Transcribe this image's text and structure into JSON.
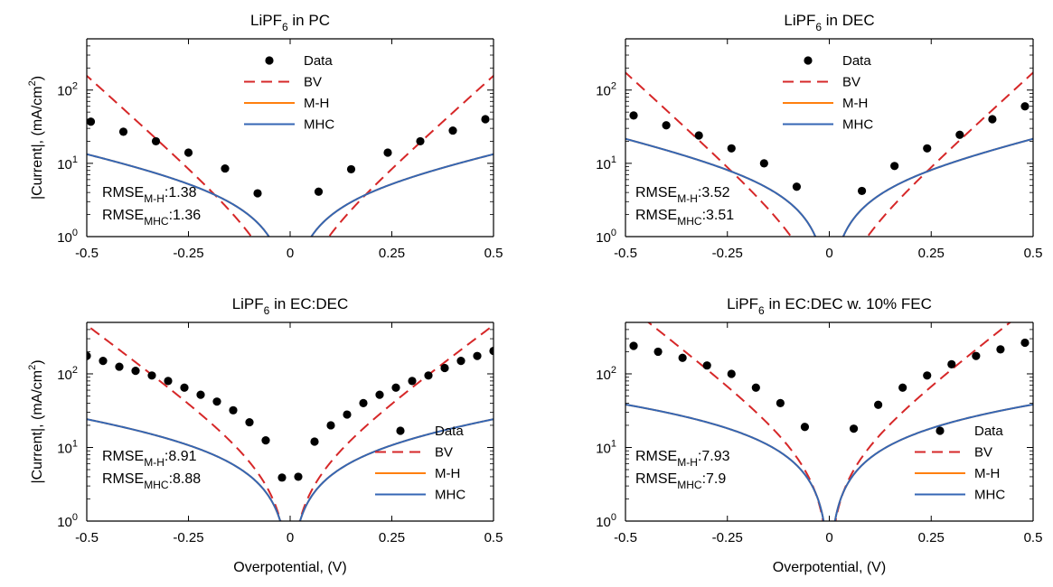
{
  "figure": {
    "xlabel": "Overpotential, (V)",
    "ylabel": "|Current|, (mA/cm",
    "ylabel_sup": "2",
    "ylabel_tail": ")",
    "xticks": [
      "-0.5",
      "-0.25",
      "0",
      "0.25",
      "0.5"
    ],
    "yticks": [
      {
        "base": "10",
        "exp": "0"
      },
      {
        "base": "10",
        "exp": "1"
      },
      {
        "base": "10",
        "exp": "2"
      }
    ],
    "colors": {
      "data": "#000000",
      "bv": "#d62728",
      "mh": "#ff7f0e",
      "mhc": "#3466b4"
    }
  },
  "chart_data": [
    {
      "type": "scatter",
      "title": "LiPF6 in PC",
      "title_main": "LiPF",
      "title_sub": "6",
      "title_rest": " in PC",
      "xlim": [
        -0.5,
        0.5
      ],
      "ylim": [
        1,
        500
      ],
      "yscale": "log",
      "legend": {
        "position": "top-center",
        "entries": [
          "Data",
          "BV",
          "M-H",
          "MHC"
        ]
      },
      "rmse": [
        {
          "label": "RMSE",
          "sub": "M-H",
          "value": ":1.38"
        },
        {
          "label": "RMSE",
          "sub": "MHC",
          "value": ":1.36"
        }
      ],
      "series": [
        {
          "name": "Data",
          "style": "markers",
          "x": [
            -0.49,
            -0.41,
            -0.33,
            -0.25,
            -0.16,
            -0.08,
            0.07,
            0.15,
            0.24,
            0.32,
            0.4,
            0.48
          ],
          "y": [
            37,
            27,
            20,
            14,
            8.5,
            3.9,
            4.1,
            8.3,
            14,
            20,
            28,
            40
          ]
        },
        {
          "name": "BV",
          "style": "dashed",
          "i0": 0.5,
          "alpha_n": 11.5
        },
        {
          "name": "M-H",
          "style": "solid",
          "A": 6.54,
          "B": 2.92
        },
        {
          "name": "MHC",
          "style": "solid",
          "A": 6.54,
          "B": 2.92
        }
      ]
    },
    {
      "type": "scatter",
      "title": "LiPF6 in DEC",
      "title_main": "LiPF",
      "title_sub": "6",
      "title_rest": " in DEC",
      "xlim": [
        -0.5,
        0.5
      ],
      "ylim": [
        1,
        500
      ],
      "yscale": "log",
      "legend": {
        "position": "top-center",
        "entries": [
          "Data",
          "BV",
          "M-H",
          "MHC"
        ]
      },
      "rmse": [
        {
          "label": "RMSE",
          "sub": "M-H",
          "value": ":3.52"
        },
        {
          "label": "RMSE",
          "sub": "MHC",
          "value": ":3.51"
        }
      ],
      "series": [
        {
          "name": "Data",
          "style": "markers",
          "x": [
            -0.48,
            -0.4,
            -0.32,
            -0.24,
            -0.16,
            -0.08,
            0.08,
            0.16,
            0.24,
            0.32,
            0.4,
            0.48
          ],
          "y": [
            45,
            33,
            24,
            16,
            10,
            4.8,
            4.2,
            9.2,
            16,
            24.5,
            40,
            60
          ]
        },
        {
          "name": "BV",
          "style": "dashed",
          "i0": 0.5,
          "alpha_n": 11.7
        },
        {
          "name": "M-H",
          "style": "solid",
          "A": 9.19,
          "B": 3.18
        },
        {
          "name": "MHC",
          "style": "solid",
          "A": 9.19,
          "B": 3.18
        }
      ]
    },
    {
      "type": "scatter",
      "title": "LiPF6 in EC:DEC",
      "title_main": "LiPF",
      "title_sub": "6",
      "title_rest": " in EC:DEC",
      "xlim": [
        -0.5,
        0.5
      ],
      "ylim": [
        1,
        500
      ],
      "yscale": "log",
      "legend": {
        "position": "bottom-right",
        "entries": [
          "Data",
          "BV",
          "M-H",
          "MHC"
        ]
      },
      "rmse": [
        {
          "label": "RMSE",
          "sub": "M-H",
          "value": ":8.91"
        },
        {
          "label": "RMSE",
          "sub": "MHC",
          "value": ":8.88"
        }
      ],
      "series": [
        {
          "name": "Data",
          "style": "markers",
          "x": [
            -0.5,
            -0.46,
            -0.42,
            -0.38,
            -0.34,
            -0.3,
            -0.26,
            -0.22,
            -0.18,
            -0.14,
            -0.1,
            -0.06,
            -0.02,
            0.02,
            0.06,
            0.1,
            0.14,
            0.18,
            0.22,
            0.26,
            0.3,
            0.34,
            0.38,
            0.42,
            0.46,
            0.5
          ],
          "y": [
            175,
            150,
            125,
            110,
            95,
            80,
            65,
            52,
            42,
            32,
            22,
            12.5,
            3.9,
            4,
            12,
            20,
            28,
            40,
            52,
            65,
            80,
            95,
            120,
            150,
            175,
            205
          ]
        },
        {
          "name": "BV",
          "style": "dashed",
          "i0": 4.0,
          "alpha_n": 9.5
        },
        {
          "name": "M-H",
          "style": "solid",
          "A": 20.6,
          "B": 2.0
        },
        {
          "name": "MHC",
          "style": "solid",
          "A": 20.6,
          "B": 2.0
        }
      ]
    },
    {
      "type": "scatter",
      "title": "LiPF6 in EC:DEC w. 10% FEC",
      "title_main": "LiPF",
      "title_sub": "6",
      "title_rest": " in EC:DEC w. 10% FEC",
      "xlim": [
        -0.5,
        0.5
      ],
      "ylim": [
        1,
        500
      ],
      "yscale": "log",
      "legend": {
        "position": "bottom-right",
        "entries": [
          "Data",
          "BV",
          "M-H",
          "MHC"
        ]
      },
      "rmse": [
        {
          "label": "RMSE",
          "sub": "M-H",
          "value": ":7.93"
        },
        {
          "label": "RMSE",
          "sub": "MHC",
          "value": ":7.9"
        }
      ],
      "series": [
        {
          "name": "Data",
          "style": "markers",
          "x": [
            -0.48,
            -0.42,
            -0.36,
            -0.3,
            -0.24,
            -0.18,
            -0.12,
            -0.06,
            0.06,
            0.12,
            0.18,
            0.24,
            0.3,
            0.36,
            0.42,
            0.48
          ],
          "y": [
            240,
            200,
            165,
            130,
            100,
            65,
            40,
            19,
            18,
            38,
            65,
            95,
            135,
            175,
            215,
            265
          ]
        },
        {
          "name": "BV",
          "style": "dashed",
          "i0": 6.0,
          "alpha_n": 10.0
        },
        {
          "name": "M-H",
          "style": "solid",
          "A": 55,
          "B": 1.3
        },
        {
          "name": "MHC",
          "style": "solid",
          "A": 55,
          "B": 1.3
        }
      ]
    }
  ]
}
